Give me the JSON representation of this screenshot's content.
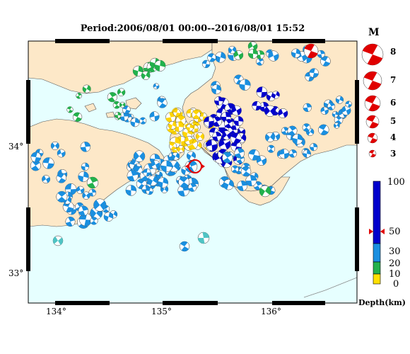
{
  "title": "Period:2006/08/01 00:00--2016/08/01 15:52",
  "lon_ticks": [
    "134°",
    "135°",
    "136°"
  ],
  "lat_ticks": [
    "34°",
    "33°"
  ],
  "magnitude_scale": {
    "title": "M",
    "labels": [
      "8",
      "7",
      "6",
      "5",
      "4",
      "3"
    ]
  },
  "depth_scale": {
    "title": "Depth(km)",
    "labels": [
      "100",
      "50",
      "30",
      "20",
      "10",
      "0"
    ],
    "colors": [
      "#0000cc",
      "#1a8fe0",
      "#22b14c",
      "#ffe000"
    ],
    "marker_depth": 50
  },
  "colors": {
    "land": "#fde8c8",
    "sea": "#e6ffff",
    "frame": "#000000",
    "highlight": "#e00000"
  }
}
